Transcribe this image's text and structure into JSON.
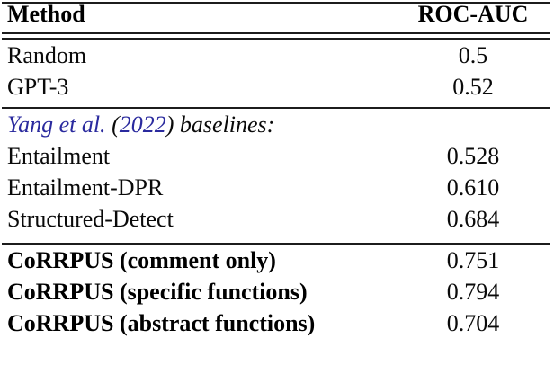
{
  "colors": {
    "text": "#0a0a0a",
    "rule": "#1c1c1c",
    "citation_blue": "#2a2a9e",
    "background": "#ffffff"
  },
  "header": {
    "method": "Method",
    "metric": "ROC-AUC"
  },
  "section1": {
    "rows": [
      {
        "method": "Random",
        "value": "0.5"
      },
      {
        "method": "GPT-3",
        "value": "0.52"
      }
    ]
  },
  "section2": {
    "label": {
      "authors": "Yang et al.",
      "open": " (",
      "year": "2022",
      "close": ")",
      "suffix": " baselines:"
    },
    "rows": [
      {
        "method": "Entailment",
        "value": "0.528"
      },
      {
        "method": "Entailment-DPR",
        "value": "0.610"
      },
      {
        "method": "Structured-Detect",
        "value": "0.684"
      }
    ]
  },
  "section3": {
    "rows": [
      {
        "method": "CoRRPUS (comment only)",
        "value": "0.751"
      },
      {
        "method": "CoRRPUS (specific functions)",
        "value": "0.794"
      },
      {
        "method": "CoRRPUS (abstract functions)",
        "value": "0.704"
      }
    ]
  }
}
